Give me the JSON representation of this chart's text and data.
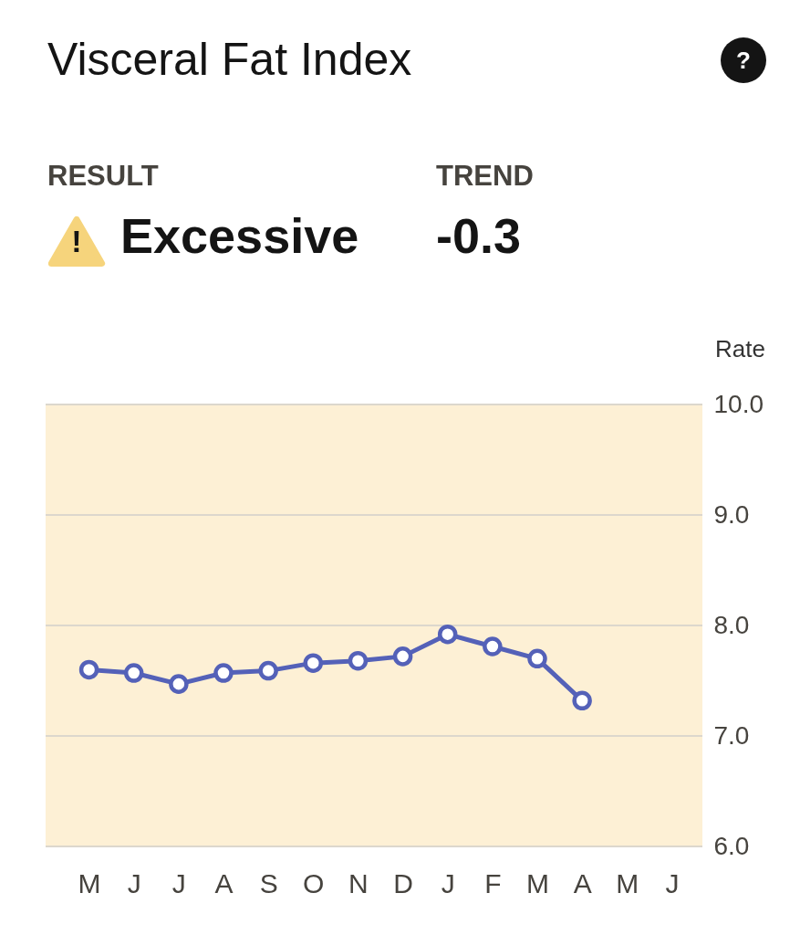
{
  "chart_data": {
    "type": "line",
    "title": "Visceral Fat Index",
    "ylabel": "Rate",
    "annotations": [
      "RESULT",
      "!",
      "Excessive",
      "TREND",
      "-0.3",
      "?"
    ],
    "categories": [
      "M",
      "J",
      "J",
      "A",
      "S",
      "O",
      "N",
      "D",
      "J",
      "F",
      "M",
      "A",
      "M",
      "J"
    ],
    "series": [
      {
        "color": "#5461b8",
        "values": [
          7.6,
          7.57,
          7.47,
          7.57,
          7.59,
          7.66,
          7.68,
          7.72,
          7.92,
          7.81,
          7.7,
          7.32,
          null,
          null
        ]
      }
    ],
    "ylim": [
      6,
      10
    ],
    "yticks": [
      {
        "value": 6,
        "label": "6.0"
      },
      {
        "value": 7,
        "label": "7.0"
      },
      {
        "value": 8,
        "label": "8.0"
      },
      {
        "value": 9,
        "label": "9.0"
      },
      {
        "value": 10,
        "label": "10.0"
      }
    ],
    "grid": "y",
    "marker": "circle",
    "bands": [
      {
        "axis": "y",
        "from": 6,
        "to": 10,
        "color": "#fdf0d5"
      }
    ]
  }
}
